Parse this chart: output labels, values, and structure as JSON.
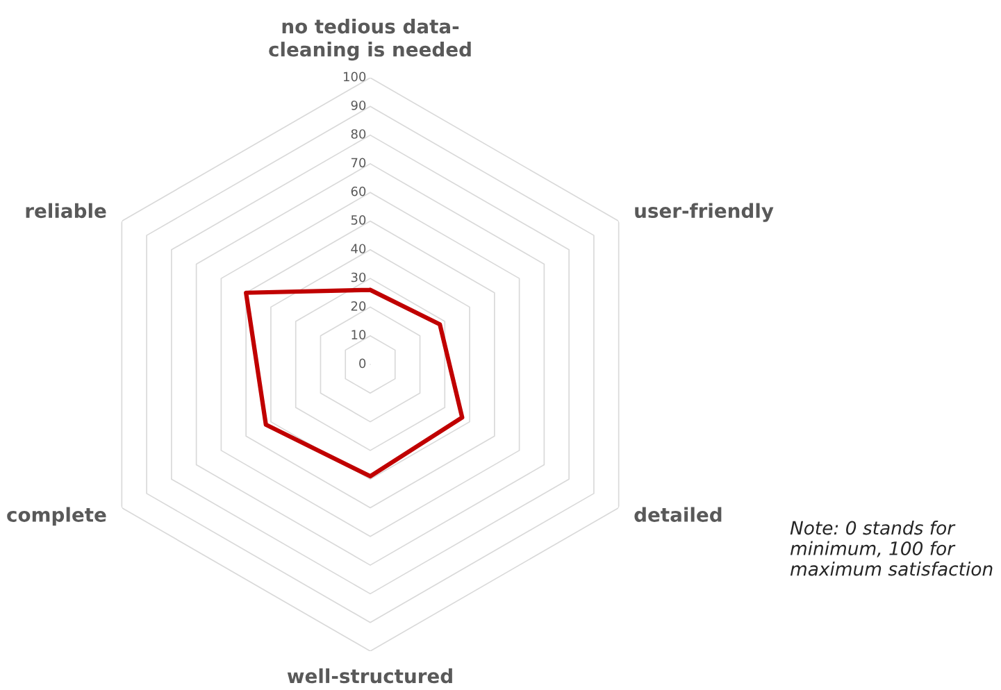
{
  "chart_data": {
    "type": "radar",
    "categories": [
      "no tedious data-cleaning is needed",
      "user-friendly",
      "detailed",
      "well-structured",
      "complete",
      "reliable"
    ],
    "series": [
      {
        "color": "#c00000",
        "values": [
          26,
          28,
          37,
          39,
          42,
          50
        ]
      }
    ],
    "ylim": [
      0,
      100
    ],
    "yticks": [
      0,
      10,
      20,
      30,
      40,
      50,
      60,
      70,
      80,
      90,
      100
    ],
    "grid": true,
    "marker": "none",
    "line_style": "solid",
    "annotations": [
      "Note: 0 stands for minimum, 100 for maximum satisfaction"
    ]
  }
}
